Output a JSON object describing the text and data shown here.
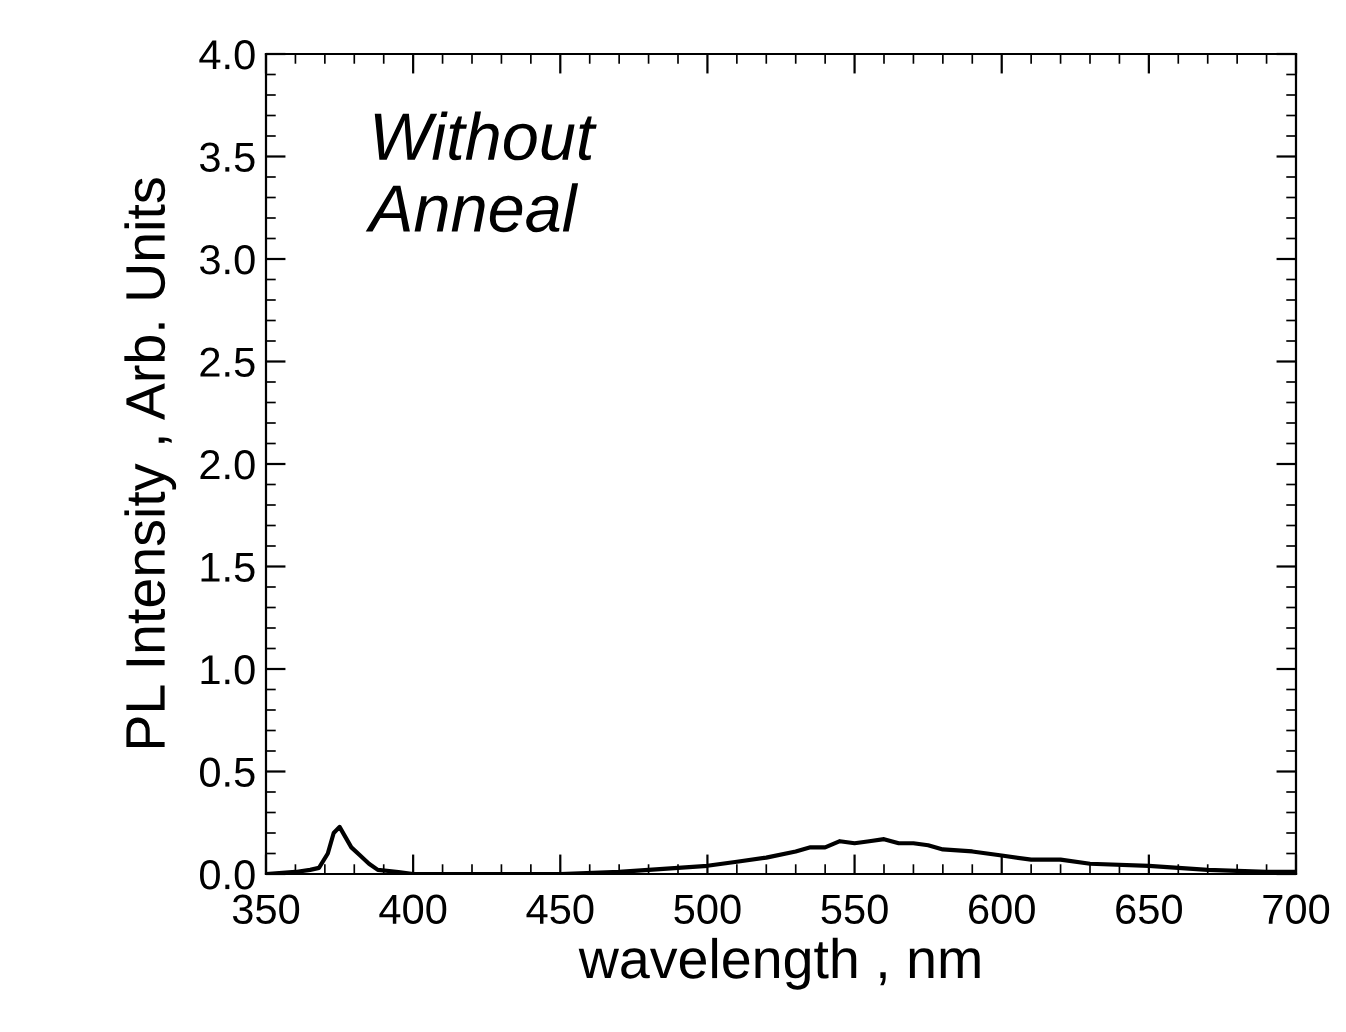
{
  "chart_data": {
    "type": "line",
    "xlabel": "wavelength , nm",
    "ylabel": "PL Intensity , Arb. Units",
    "annotations": [
      "Without\nAnneal"
    ],
    "x": [
      350,
      360,
      365,
      368,
      371,
      373,
      375,
      377,
      379,
      382,
      385,
      388,
      395,
      400,
      450,
      470,
      490,
      500,
      510,
      520,
      530,
      535,
      540,
      545,
      550,
      555,
      560,
      565,
      570,
      575,
      580,
      590,
      600,
      610,
      620,
      630,
      650,
      670,
      690,
      700
    ],
    "series": [
      {
        "color": "#000000",
        "values": [
          0,
          0.01,
          0.02,
          0.03,
          0.1,
          0.2,
          0.23,
          0.18,
          0.13,
          0.09,
          0.05,
          0.02,
          0.01,
          0,
          0,
          0.01,
          0.03,
          0.04,
          0.06,
          0.08,
          0.11,
          0.13,
          0.13,
          0.16,
          0.15,
          0.16,
          0.17,
          0.15,
          0.15,
          0.14,
          0.12,
          0.11,
          0.09,
          0.07,
          0.07,
          0.05,
          0.04,
          0.02,
          0.01,
          0.01
        ]
      }
    ],
    "xlim": [
      350,
      700
    ],
    "xticks": [
      350,
      400,
      450,
      500,
      550,
      600,
      650,
      700
    ],
    "ylim": [
      0,
      4.0
    ],
    "yticks": [
      {
        "value": 0,
        "label": "0.0"
      },
      {
        "value": 0.5,
        "label": "0.5"
      },
      {
        "value": 1,
        "label": "1.0"
      },
      {
        "value": 1.5,
        "label": "1.5"
      },
      {
        "value": 2,
        "label": "2.0"
      },
      {
        "value": 2.5,
        "label": "2.5"
      },
      {
        "value": 3,
        "label": "3.0"
      },
      {
        "value": 3.5,
        "label": "3.5"
      },
      {
        "value": 4,
        "label": "4.0"
      }
    ],
    "grid": false,
    "legend": false,
    "marker": "none",
    "line_style": "solid"
  }
}
